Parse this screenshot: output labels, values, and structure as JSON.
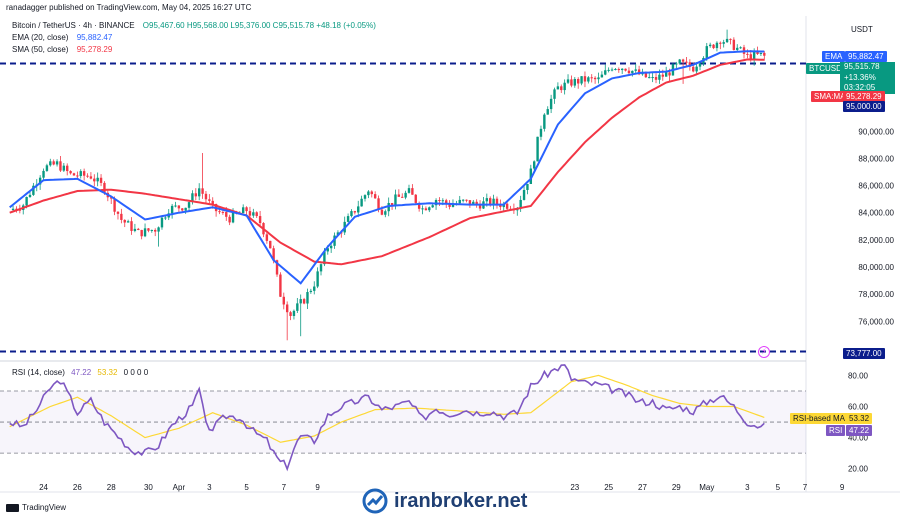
{
  "header": {
    "published_by": "ranadagger published on TradingView.com, May 04, 2025 16:27 UTC",
    "symbol_line": "Bitcoin / TetherUS · 4h · BINANCE",
    "ohlc": "O95,467.60 H95,568.00 L95,376.00 C95,515.78 +48.18 (+0.05%)",
    "ema_label": "EMA (20, close)",
    "ema_value": "95,882.47",
    "sma_label": "SMA (50, close)",
    "sma_value": "95,278.29",
    "currency": "USDT"
  },
  "price_tags": {
    "ema_name": "EMA",
    "ema_value": "95,882.47",
    "symbol_name": "BTCUSDT",
    "price": "95,515.78",
    "change": "+13.36%",
    "countdown": "03:32:05",
    "sma_name": "SMA:MA",
    "sma_value": "95,278.29",
    "level_upper": "95,000.00",
    "level_lower": "73,777.00"
  },
  "rsi": {
    "label": "RSI (14, close)",
    "value": "47.22",
    "ma_value": "53.32",
    "extras": "0 0 0 0",
    "ma_tag_name": "RSI-based MA",
    "ma_tag_value": "53.32",
    "rsi_tag_name": "RSI",
    "rsi_tag_value": "47.22"
  },
  "footer": {
    "brand": "TradingView",
    "watermark": "iranbroker.net"
  },
  "colors": {
    "ema": "#2962ff",
    "sma": "#f23645",
    "up": "#089981",
    "down": "#f23645",
    "rsi": "#7e57c2",
    "rsi_ma": "#fdd835",
    "level": "#0b1d8c"
  },
  "chart_data": {
    "type": "candlestick",
    "title": "Bitcoin / TetherUS · 4h · BINANCE",
    "price_axis": {
      "ticks": [
        76000,
        78000,
        80000,
        82000,
        84000,
        86000,
        88000,
        90000
      ],
      "tick_labels": [
        "76,000.00",
        "78,000.00",
        "80,000.00",
        "82,000.00",
        "84,000.00",
        "86,000.00",
        "88,000.00",
        "90,000.00"
      ],
      "range": [
        73000,
        98500
      ]
    },
    "x_axis": {
      "labels": [
        "24",
        "26",
        "28",
        "30",
        "Apr",
        "3",
        "5",
        "7",
        "9",
        "23",
        "25",
        "27",
        "29",
        "May",
        "3",
        "5",
        "7",
        "9"
      ],
      "label_bar_index": [
        10,
        20,
        30,
        41,
        50,
        59,
        70,
        81,
        91,
        167,
        177,
        187,
        197,
        206,
        218,
        227,
        235,
        246
      ]
    },
    "horizontal_levels": [
      95000,
      73777
    ],
    "price_anchors": [
      [
        0,
        84200
      ],
      [
        4,
        84600
      ],
      [
        10,
        87300
      ],
      [
        14,
        87600
      ],
      [
        18,
        86800
      ],
      [
        24,
        86700
      ],
      [
        28,
        85800
      ],
      [
        33,
        83500
      ],
      [
        38,
        82500
      ],
      [
        43,
        82800
      ],
      [
        47,
        84300
      ],
      [
        52,
        84500
      ],
      [
        56,
        85800
      ],
      [
        60,
        84300
      ],
      [
        65,
        83600
      ],
      [
        70,
        84200
      ],
      [
        74,
        83300
      ],
      [
        77,
        81500
      ],
      [
        80,
        78000
      ],
      [
        83,
        76500
      ],
      [
        87,
        77600
      ],
      [
        90,
        78800
      ],
      [
        94,
        81500
      ],
      [
        98,
        82800
      ],
      [
        102,
        84200
      ],
      [
        106,
        85700
      ],
      [
        110,
        84200
      ],
      [
        114,
        85000
      ],
      [
        118,
        85500
      ],
      [
        122,
        84300
      ],
      [
        126,
        85000
      ],
      [
        130,
        84600
      ],
      [
        134,
        84800
      ],
      [
        138,
        84600
      ],
      [
        142,
        84800
      ],
      [
        146,
        84600
      ],
      [
        150,
        84500
      ],
      [
        154,
        87000
      ],
      [
        158,
        91500
      ],
      [
        162,
        93200
      ],
      [
        166,
        93600
      ],
      [
        170,
        93800
      ],
      [
        174,
        93800
      ],
      [
        178,
        94800
      ],
      [
        182,
        94700
      ],
      [
        186,
        94200
      ],
      [
        190,
        93800
      ],
      [
        194,
        94200
      ],
      [
        198,
        95000
      ],
      [
        202,
        94700
      ],
      [
        206,
        96000
      ],
      [
        210,
        96800
      ],
      [
        214,
        96300
      ],
      [
        218,
        95500
      ],
      [
        222,
        95600
      ],
      [
        223,
        95516
      ]
    ],
    "spikes": [
      [
        57,
        88400
      ],
      [
        82,
        74600
      ],
      [
        86,
        74900
      ],
      [
        44,
        81500
      ],
      [
        199,
        93500
      ],
      [
        212,
        97500
      ]
    ],
    "ema": [
      [
        0,
        84400
      ],
      [
        10,
        86400
      ],
      [
        20,
        86500
      ],
      [
        30,
        85200
      ],
      [
        40,
        83500
      ],
      [
        50,
        84000
      ],
      [
        60,
        84400
      ],
      [
        70,
        83800
      ],
      [
        78,
        80500
      ],
      [
        86,
        78800
      ],
      [
        94,
        81500
      ],
      [
        102,
        83700
      ],
      [
        112,
        84500
      ],
      [
        124,
        84700
      ],
      [
        136,
        84600
      ],
      [
        146,
        84600
      ],
      [
        154,
        86500
      ],
      [
        162,
        90500
      ],
      [
        170,
        92800
      ],
      [
        178,
        93900
      ],
      [
        186,
        94300
      ],
      [
        194,
        94400
      ],
      [
        202,
        94900
      ],
      [
        210,
        95800
      ],
      [
        218,
        95900
      ],
      [
        223,
        95882
      ]
    ],
    "sma": [
      [
        0,
        84000
      ],
      [
        10,
        84900
      ],
      [
        20,
        85600
      ],
      [
        30,
        85700
      ],
      [
        40,
        85400
      ],
      [
        50,
        85000
      ],
      [
        60,
        84600
      ],
      [
        70,
        83800
      ],
      [
        80,
        81800
      ],
      [
        90,
        80400
      ],
      [
        98,
        80200
      ],
      [
        110,
        80800
      ],
      [
        124,
        82200
      ],
      [
        136,
        83600
      ],
      [
        146,
        84100
      ],
      [
        154,
        84500
      ],
      [
        162,
        87000
      ],
      [
        170,
        89200
      ],
      [
        178,
        91000
      ],
      [
        186,
        92500
      ],
      [
        194,
        93600
      ],
      [
        202,
        94100
      ],
      [
        210,
        94900
      ],
      [
        218,
        95300
      ],
      [
        223,
        95278
      ]
    ],
    "rsi_axis": {
      "ticks": [
        20,
        40,
        60,
        80
      ],
      "tick_labels": [
        "20.00",
        "40.00",
        "60.00",
        "80.00"
      ],
      "range": [
        14,
        88
      ],
      "bands": [
        70,
        50,
        30
      ]
    },
    "rsi_values": [
      [
        0,
        50
      ],
      [
        4,
        47
      ],
      [
        8,
        58
      ],
      [
        12,
        72
      ],
      [
        15,
        77
      ],
      [
        18,
        65
      ],
      [
        20,
        56
      ],
      [
        24,
        64
      ],
      [
        28,
        50
      ],
      [
        32,
        41
      ],
      [
        36,
        32
      ],
      [
        40,
        30
      ],
      [
        44,
        35
      ],
      [
        48,
        48
      ],
      [
        52,
        56
      ],
      [
        54,
        60
      ],
      [
        56,
        71
      ],
      [
        58,
        48
      ],
      [
        60,
        46
      ],
      [
        64,
        54
      ],
      [
        68,
        53
      ],
      [
        72,
        44
      ],
      [
        76,
        38
      ],
      [
        78,
        30
      ],
      [
        80,
        24
      ],
      [
        82,
        22
      ],
      [
        84,
        33
      ],
      [
        86,
        41
      ],
      [
        90,
        38
      ],
      [
        94,
        54
      ],
      [
        98,
        60
      ],
      [
        102,
        63
      ],
      [
        106,
        66
      ],
      [
        110,
        58
      ],
      [
        114,
        60
      ],
      [
        118,
        63
      ],
      [
        122,
        52
      ],
      [
        126,
        59
      ],
      [
        130,
        55
      ],
      [
        134,
        58
      ],
      [
        138,
        56
      ],
      [
        142,
        57
      ],
      [
        146,
        54
      ],
      [
        150,
        56
      ],
      [
        154,
        73
      ],
      [
        158,
        80
      ],
      [
        162,
        85
      ],
      [
        164,
        86
      ],
      [
        166,
        78
      ],
      [
        170,
        75
      ],
      [
        174,
        74
      ],
      [
        178,
        71
      ],
      [
        182,
        68
      ],
      [
        186,
        63
      ],
      [
        190,
        63
      ],
      [
        194,
        58
      ],
      [
        198,
        60
      ],
      [
        202,
        57
      ],
      [
        206,
        63
      ],
      [
        210,
        67
      ],
      [
        214,
        60
      ],
      [
        218,
        50
      ],
      [
        222,
        47
      ],
      [
        223,
        47
      ]
    ],
    "rsi_ma_values": [
      [
        0,
        47
      ],
      [
        12,
        60
      ],
      [
        20,
        66
      ],
      [
        30,
        54
      ],
      [
        40,
        40
      ],
      [
        50,
        46
      ],
      [
        60,
        56
      ],
      [
        70,
        48
      ],
      [
        80,
        37
      ],
      [
        90,
        41
      ],
      [
        98,
        50
      ],
      [
        108,
        58
      ],
      [
        120,
        59
      ],
      [
        134,
        57
      ],
      [
        146,
        55
      ],
      [
        154,
        56
      ],
      [
        160,
        66
      ],
      [
        166,
        76
      ],
      [
        174,
        80
      ],
      [
        182,
        74
      ],
      [
        190,
        67
      ],
      [
        198,
        62
      ],
      [
        206,
        60
      ],
      [
        214,
        60
      ],
      [
        223,
        53
      ]
    ]
  }
}
